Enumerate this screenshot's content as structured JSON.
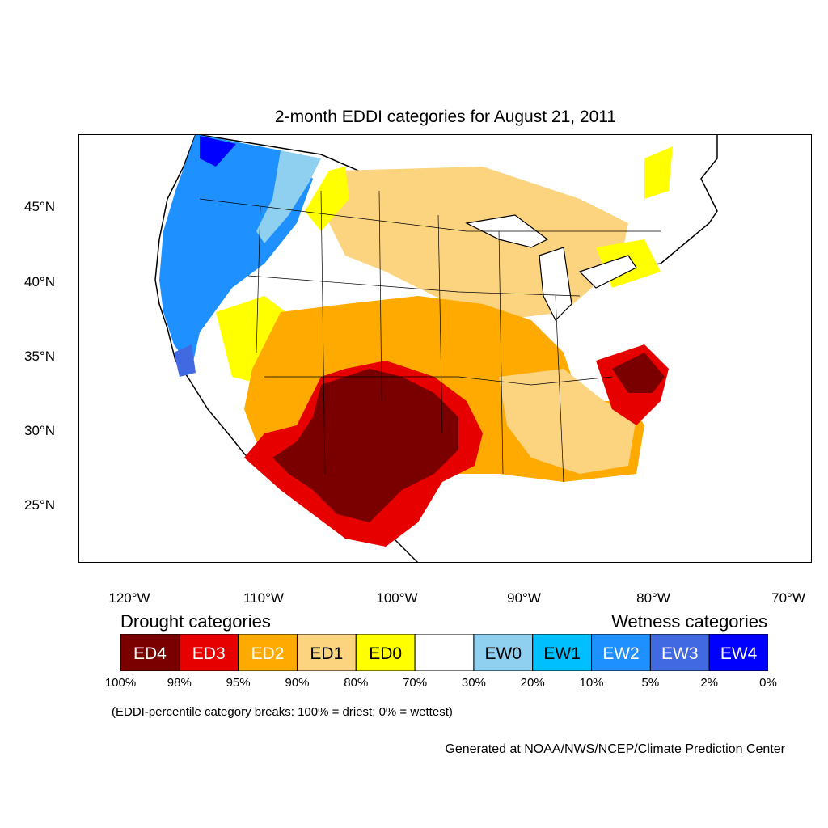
{
  "title": "2-month EDDI categories for August 21, 2011",
  "lat_labels": [
    "45°N",
    "40°N",
    "35°N",
    "30°N",
    "25°N"
  ],
  "lon_labels": [
    "120°W",
    "110°W",
    "100°W",
    "90°W",
    "80°W",
    "70°W"
  ],
  "legend": {
    "drought_heading": "Drought categories",
    "wetness_heading": "Wetness categories",
    "categories": [
      {
        "label": "ED4",
        "color": "#7a0000",
        "text_color": "#ffffff"
      },
      {
        "label": "ED3",
        "color": "#e60000",
        "text_color": "#ffffff"
      },
      {
        "label": "ED2",
        "color": "#ffaa00",
        "text_color": "#ffffff"
      },
      {
        "label": "ED1",
        "color": "#fcd37f",
        "text_color": "#000000"
      },
      {
        "label": "ED0",
        "color": "#ffff00",
        "text_color": "#000000"
      },
      {
        "label": "",
        "color": "#ffffff",
        "text_color": "#000000"
      },
      {
        "label": "EW0",
        "color": "#8fcff0",
        "text_color": "#000000"
      },
      {
        "label": "EW1",
        "color": "#00bfff",
        "text_color": "#000000"
      },
      {
        "label": "EW2",
        "color": "#1e90ff",
        "text_color": "#ffffff"
      },
      {
        "label": "EW3",
        "color": "#4169e1",
        "text_color": "#ffffff"
      },
      {
        "label": "EW4",
        "color": "#0000ff",
        "text_color": "#ffffff"
      }
    ],
    "percentiles": [
      "100%",
      "98%",
      "95%",
      "90%",
      "80%",
      "70%",
      "30%",
      "20%",
      "10%",
      "5%",
      "2%",
      "0%"
    ]
  },
  "note": "(EDDI-percentile category breaks: 100% = driest; 0% = wettest)",
  "credit": "Generated at NOAA/NWS/NCEP/Climate Prediction Center"
}
